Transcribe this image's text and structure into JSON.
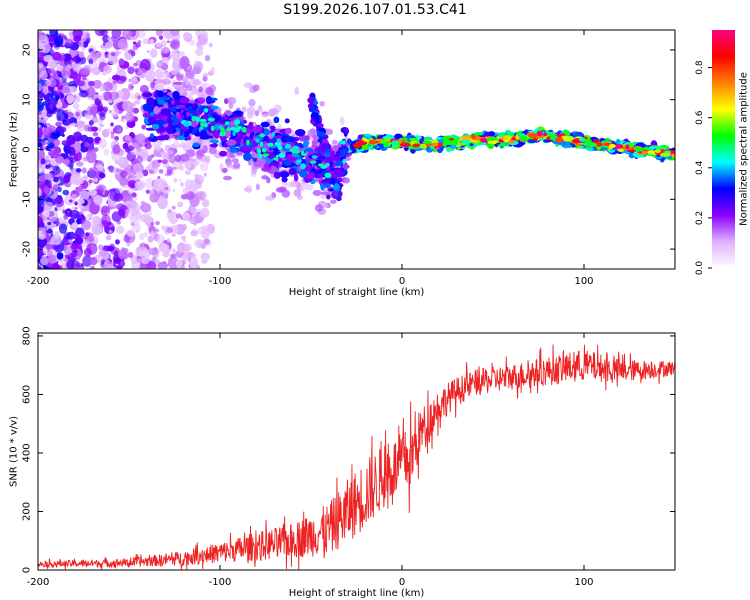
{
  "title": "S199.2026.107.01.53.C41",
  "chart_data": [
    {
      "type": "heatmap",
      "xlabel": "Height of straight line (km)",
      "ylabel": "Frequency (Hz)",
      "xlim": [
        -200,
        150
      ],
      "ylim": [
        -24,
        24
      ],
      "x_ticks": [
        -200,
        -100,
        0,
        100
      ],
      "y_ticks": [
        -20,
        -10,
        0,
        10,
        20
      ],
      "colorbar": {
        "label": "Normalized spectral amplitude",
        "range": [
          0.0,
          0.95
        ],
        "ticks": [
          0.0,
          0.2,
          0.4,
          0.6,
          0.8
        ],
        "colors": [
          "#ffffff",
          "#e0b0ff",
          "#8a00ff",
          "#0000ff",
          "#00ffff",
          "#00ff00",
          "#ffff00",
          "#ff8000",
          "#ff0000",
          "#ff0080"
        ]
      },
      "ridge": {
        "x": [
          -130,
          -110,
          -90,
          -70,
          -50,
          -40,
          -30,
          -20,
          0,
          20,
          40,
          60,
          75,
          90,
          110,
          130,
          150
        ],
        "freq_hz": [
          7,
          6,
          3,
          0,
          -2,
          -4,
          0,
          1.5,
          1.5,
          1,
          2,
          2,
          3,
          2,
          1,
          0,
          -1
        ]
      }
    },
    {
      "type": "line",
      "xlabel": "Height of straight line (km)",
      "ylabel": "SNR (10 * v/v)",
      "xlim": [
        -200,
        150
      ],
      "ylim": [
        0,
        810
      ],
      "x_ticks": [
        -200,
        -100,
        0,
        100
      ],
      "y_ticks": [
        0,
        200,
        400,
        600,
        800
      ],
      "color": "#ee2222",
      "envelope": {
        "x": [
          -200,
          -150,
          -120,
          -100,
          -80,
          -60,
          -40,
          -30,
          -20,
          -10,
          0,
          5,
          10,
          20,
          30,
          40,
          60,
          80,
          100,
          120,
          150
        ],
        "mean": [
          20,
          25,
          40,
          60,
          80,
          100,
          140,
          200,
          260,
          320,
          370,
          380,
          470,
          560,
          610,
          640,
          660,
          680,
          700,
          680,
          690
        ],
        "noise_amplitude": [
          10,
          15,
          25,
          35,
          50,
          60,
          90,
          110,
          120,
          110,
          100,
          120,
          80,
          60,
          50,
          45,
          45,
          50,
          55,
          40,
          25
        ]
      }
    }
  ]
}
